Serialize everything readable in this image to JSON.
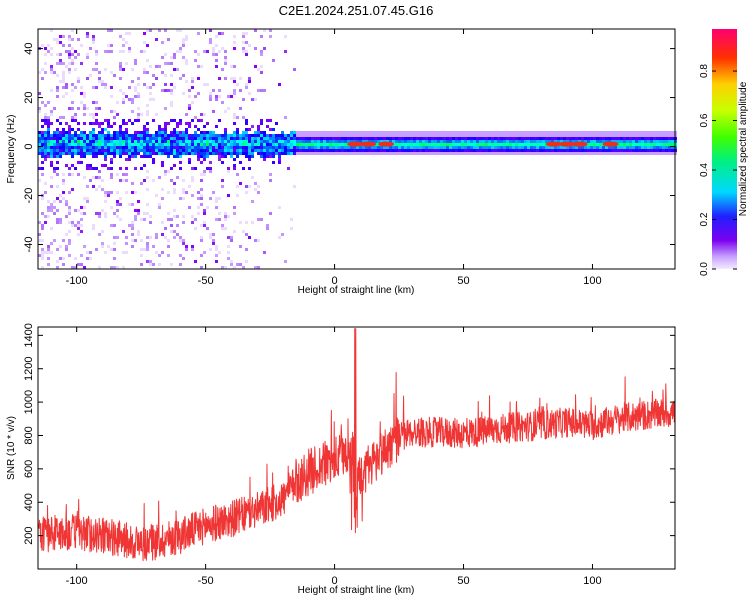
{
  "title": "C2E1.2024.251.07.45.G16",
  "chart_data": [
    {
      "type": "heatmap",
      "xlabel": "Height of straight line (km)",
      "ylabel": "Frequency (Hz)",
      "xlim": [
        -115,
        132
      ],
      "ylim": [
        -50,
        48
      ],
      "xticks": [
        -100,
        -50,
        0,
        50,
        100
      ],
      "yticks": [
        -40,
        -20,
        0,
        20,
        40
      ],
      "colorbar": {
        "label": "Normalized spectral amplitude",
        "range": [
          0,
          0.97
        ],
        "ticks": [
          0.0,
          0.2,
          0.4,
          0.6,
          0.8
        ]
      },
      "ridge": {
        "center_frequency_hz": 1,
        "hot_spots_km": [
          8,
          13,
          20,
          85,
          90,
          95,
          107
        ]
      }
    },
    {
      "type": "line",
      "xlabel": "Height of straight line (km)",
      "ylabel": "SNR (10 * v/v)",
      "xlim": [
        -115,
        132
      ],
      "ylim": [
        0,
        1450
      ],
      "xticks": [
        -100,
        -50,
        0,
        50,
        100
      ],
      "yticks": [
        200,
        400,
        600,
        800,
        1000,
        1200,
        1400
      ],
      "line_color": "#f03535",
      "series": [
        {
          "x": [
            -115,
            -100,
            -90,
            -80,
            -75,
            -70,
            -60,
            -50,
            -40,
            -30,
            -20,
            -15,
            -10,
            -5,
            0,
            5,
            8,
            10,
            15,
            20,
            25,
            30,
            40,
            50,
            60,
            70,
            80,
            90,
            100,
            110,
            120,
            132
          ],
          "values": [
            210,
            220,
            200,
            170,
            150,
            160,
            200,
            260,
            300,
            350,
            420,
            520,
            580,
            620,
            650,
            700,
            730,
            560,
            640,
            720,
            790,
            820,
            820,
            810,
            830,
            850,
            860,
            880,
            860,
            900,
            920,
            940
          ]
        }
      ]
    }
  ]
}
